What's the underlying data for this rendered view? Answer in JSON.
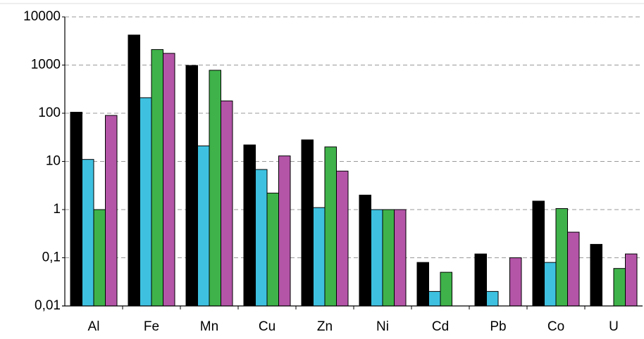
{
  "chart_data": {
    "type": "bar",
    "log_y": true,
    "grid": true,
    "categories": [
      "Al",
      "Fe",
      "Mn",
      "Cu",
      "Zn",
      "Ni",
      "Cd",
      "Pb",
      "Co",
      "U"
    ],
    "series": [
      {
        "color": "#000000",
        "values": [
          105,
          4200,
          980,
          22,
          28,
          2.0,
          0.08,
          0.12,
          1.5,
          0.19
        ]
      },
      {
        "color": "#3ec1e0",
        "values": [
          11,
          210,
          21,
          6.8,
          1.1,
          1,
          0.02,
          0.02,
          0.08,
          null
        ]
      },
      {
        "color": "#3fb34a",
        "values": [
          1,
          2100,
          780,
          2.2,
          20,
          1,
          0.05,
          null,
          1.05,
          0.06
        ]
      },
      {
        "color": "#b455a8",
        "values": [
          90,
          1750,
          180,
          13,
          6.3,
          1,
          null,
          0.1,
          0.34,
          0.12
        ]
      }
    ],
    "ylim": [
      0.01,
      10000
    ],
    "yticks": [
      {
        "value": 0.01,
        "label": "0,01"
      },
      {
        "value": 0.1,
        "label": "0,1"
      },
      1,
      10,
      100,
      1000,
      10000
    ]
  }
}
